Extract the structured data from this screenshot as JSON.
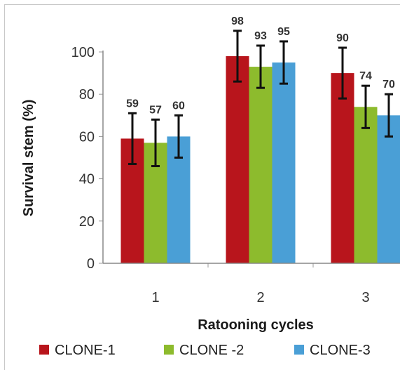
{
  "chart_data": {
    "type": "bar",
    "title": "",
    "xlabel": "Ratooning cycles",
    "ylabel": "Survival stem (%)",
    "categories": [
      "1",
      "2",
      "3"
    ],
    "ylim": [
      0,
      100
    ],
    "yticks": [
      0,
      20,
      40,
      60,
      80,
      100
    ],
    "grid": false,
    "legend_position": "bottom",
    "series": [
      {
        "name": "CLONE-1",
        "color": "#b8151c",
        "values": [
          59,
          98,
          90
        ],
        "errors": [
          12,
          12,
          12
        ],
        "labels": [
          "59",
          "98",
          "90"
        ]
      },
      {
        "name": "CLONE -2",
        "color": "#8dbb2d",
        "values": [
          57,
          93,
          74
        ],
        "errors": [
          11,
          10,
          10
        ],
        "labels": [
          "57",
          "93",
          "74"
        ]
      },
      {
        "name": "CLONE-3",
        "color": "#4a9fd6",
        "values": [
          60,
          95,
          70
        ],
        "errors": [
          10,
          10,
          10
        ],
        "labels": [
          "60",
          "95",
          "70"
        ]
      }
    ]
  }
}
